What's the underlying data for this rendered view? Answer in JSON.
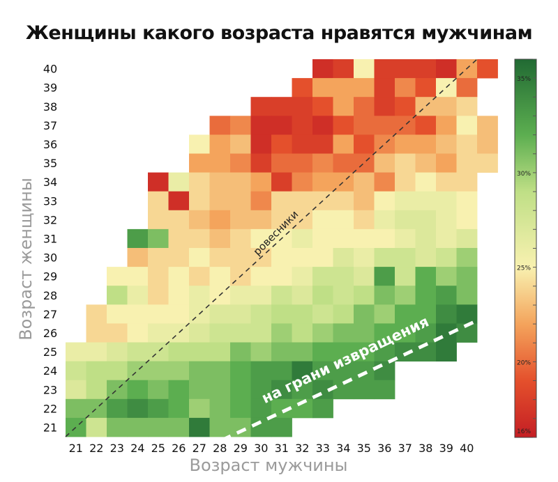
{
  "title": "Женщины какого возраста нравятся мужчинам",
  "chart_data": {
    "type": "heatmap",
    "title": "Женщины какого возраста нравятся мужчинам",
    "xlabel": "Возраст мужчины",
    "ylabel": "Возраст женщины",
    "x": [
      21,
      22,
      23,
      24,
      25,
      26,
      27,
      28,
      29,
      30,
      31,
      32,
      33,
      34,
      35,
      36,
      37,
      38,
      39,
      40
    ],
    "y": [
      21,
      22,
      23,
      24,
      25,
      26,
      27,
      28,
      29,
      30,
      31,
      32,
      33,
      34,
      35,
      36,
      37,
      38,
      39,
      40
    ],
    "value_unit": "%",
    "colorbar": {
      "ticks": [
        35,
        30,
        25,
        20,
        16
      ],
      "tick_labels": [
        "35%",
        "30%",
        "25%",
        "20%",
        "16%"
      ],
      "range": [
        16,
        36
      ],
      "stops": [
        {
          "v": 16,
          "color": "#c41e24"
        },
        {
          "v": 19,
          "color": "#e4502c"
        },
        {
          "v": 22,
          "color": "#f4a45c"
        },
        {
          "v": 25,
          "color": "#f8f1b0"
        },
        {
          "v": 29,
          "color": "#bfdf86"
        },
        {
          "v": 32,
          "color": "#5cae50"
        },
        {
          "v": 36,
          "color": "#216a33"
        }
      ]
    },
    "annotations": [
      {
        "text": "ровесники"
      },
      {
        "text": "на грани извращения"
      }
    ],
    "rows": [
      {
        "y": 40,
        "x_start": 33,
        "values": [
          17,
          18,
          25,
          18,
          18,
          18,
          17,
          22,
          19
        ]
      },
      {
        "y": 39,
        "x_start": 32,
        "values": [
          19,
          22,
          22,
          22,
          18,
          21,
          19,
          25,
          20
        ]
      },
      {
        "y": 38,
        "x_start": 30,
        "values": [
          18,
          18,
          18,
          19,
          22,
          20,
          18,
          19,
          23,
          23,
          24
        ]
      },
      {
        "y": 37,
        "x_start": 28,
        "values": [
          20,
          21,
          17,
          17,
          18,
          17,
          19,
          20,
          20,
          20,
          19,
          22,
          25,
          23
        ]
      },
      {
        "y": 36,
        "x_start": 27,
        "values": [
          25,
          22,
          23,
          17,
          19,
          18,
          18,
          22,
          19,
          21,
          22,
          22,
          23,
          24,
          23
        ]
      },
      {
        "y": 35,
        "x_start": 27,
        "values": [
          22,
          22,
          21,
          18,
          20,
          20,
          21,
          20,
          20,
          23,
          24,
          23,
          22,
          24,
          24
        ]
      },
      {
        "y": 34,
        "x_start": 25,
        "values": [
          17,
          26,
          24,
          23,
          23,
          22,
          18,
          21,
          22,
          22,
          23,
          21,
          24,
          25,
          24,
          24
        ]
      },
      {
        "y": 33,
        "x_start": 25,
        "values": [
          24,
          17,
          24,
          23,
          23,
          21,
          24,
          24,
          24,
          24,
          23,
          25,
          26,
          26,
          26,
          25
        ]
      },
      {
        "y": 32,
        "x_start": 25,
        "values": [
          24,
          24,
          23,
          22,
          23,
          23,
          24,
          24,
          25,
          25,
          24,
          26,
          27,
          27,
          26,
          25
        ]
      },
      {
        "y": 31,
        "x_start": 24,
        "values": [
          33,
          31,
          24,
          24,
          23,
          24,
          25,
          25,
          26,
          25,
          25,
          25,
          25,
          26,
          27,
          26,
          27
        ]
      },
      {
        "y": 30,
        "x_start": 24,
        "values": [
          23,
          24,
          24,
          25,
          24,
          24,
          24,
          25,
          25,
          25,
          27,
          26,
          28,
          28,
          27,
          28,
          30
        ]
      },
      {
        "y": 29,
        "x_start": 23,
        "values": [
          25,
          25,
          24,
          25,
          24,
          25,
          24,
          25,
          25,
          26,
          28,
          28,
          27,
          33,
          28,
          32,
          30,
          31
        ]
      },
      {
        "y": 28,
        "x_start": 23,
        "values": [
          29,
          26,
          24,
          25,
          26,
          25,
          26,
          26,
          28,
          27,
          29,
          28,
          29,
          31,
          30,
          32,
          33,
          31
        ]
      },
      {
        "y": 27,
        "x_start": 22,
        "values": [
          24,
          25,
          25,
          25,
          25,
          26,
          27,
          27,
          28,
          29,
          29,
          28,
          29,
          31,
          30,
          32,
          32,
          34,
          35
        ]
      },
      {
        "y": 26,
        "x_start": 22,
        "values": [
          24,
          24,
          25,
          26,
          26,
          27,
          28,
          28,
          28,
          30,
          29,
          30,
          31,
          31,
          32,
          32,
          33,
          35,
          34
        ]
      },
      {
        "y": 25,
        "x_start": 21,
        "values": [
          26,
          26,
          27,
          28,
          28,
          29,
          29,
          29,
          31,
          30,
          31,
          31,
          32,
          32,
          32,
          33,
          34,
          34,
          35
        ]
      },
      {
        "y": 24,
        "x_start": 21,
        "values": [
          28,
          29,
          29,
          30,
          30,
          30,
          31,
          31,
          32,
          33,
          33,
          35,
          33,
          33,
          33,
          34
        ]
      },
      {
        "y": 23,
        "x_start": 21,
        "values": [
          27,
          29,
          31,
          32,
          31,
          32,
          31,
          31,
          32,
          33,
          34,
          33,
          34,
          33,
          33,
          33
        ]
      },
      {
        "y": 22,
        "x_start": 21,
        "values": [
          31,
          31,
          33,
          34,
          33,
          32,
          30,
          31,
          32,
          33,
          32,
          32,
          33
        ]
      },
      {
        "y": 21,
        "x_start": 21,
        "values": [
          32,
          28,
          31,
          31,
          31,
          31,
          35,
          31,
          31,
          33,
          33
        ]
      }
    ]
  }
}
